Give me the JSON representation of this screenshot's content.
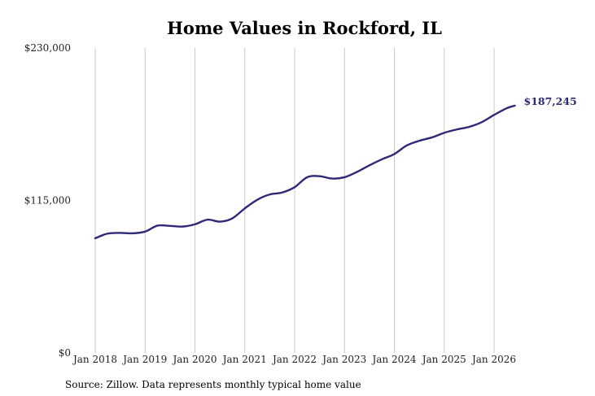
{
  "chart_data": {
    "type": "line",
    "title": "Home Values in Rockford, IL",
    "xlabel": "",
    "ylabel": "",
    "source": "Source: Zillow. Data represents monthly typical home value",
    "end_label": "$187,245",
    "line_color": "#2e2a78",
    "grid": {
      "vertical": true,
      "horizontal": false,
      "color": "#c8c8c8"
    },
    "ylim": [
      0,
      230000
    ],
    "y_ticks": [
      {
        "value": 230000,
        "label": "$230,000"
      },
      {
        "value": 115000,
        "label": "$115,000"
      },
      {
        "value": 0,
        "label": "$0"
      }
    ],
    "x_ticks": [
      {
        "value": "2018-01",
        "label": "Jan 2018"
      },
      {
        "value": "2019-01",
        "label": "Jan 2019"
      },
      {
        "value": "2020-01",
        "label": "Jan 2020"
      },
      {
        "value": "2021-01",
        "label": "Jan 2021"
      },
      {
        "value": "2022-01",
        "label": "Jan 2022"
      },
      {
        "value": "2023-01",
        "label": "Jan 2023"
      },
      {
        "value": "2024-01",
        "label": "Jan 2024"
      },
      {
        "value": "2025-01",
        "label": "Jan 2025"
      },
      {
        "value": "2026-01",
        "label": "Jan 2026"
      }
    ],
    "series": [
      {
        "points": [
          [
            "2018-01",
            86500
          ],
          [
            "2018-04",
            90000
          ],
          [
            "2018-07",
            90500
          ],
          [
            "2018-10",
            90200
          ],
          [
            "2019-01",
            91500
          ],
          [
            "2019-04",
            96000
          ],
          [
            "2019-07",
            95800
          ],
          [
            "2019-10",
            95300
          ],
          [
            "2020-01",
            97000
          ],
          [
            "2020-04",
            100500
          ],
          [
            "2020-07",
            99000
          ],
          [
            "2020-10",
            101500
          ],
          [
            "2021-01",
            109000
          ],
          [
            "2021-04",
            115500
          ],
          [
            "2021-07",
            119500
          ],
          [
            "2021-10",
            121000
          ],
          [
            "2022-01",
            125000
          ],
          [
            "2022-04",
            132500
          ],
          [
            "2022-07",
            133300
          ],
          [
            "2022-10",
            131500
          ],
          [
            "2023-01",
            132500
          ],
          [
            "2023-04",
            136500
          ],
          [
            "2023-07",
            141500
          ],
          [
            "2023-10",
            146000
          ],
          [
            "2024-01",
            150000
          ],
          [
            "2024-04",
            156500
          ],
          [
            "2024-07",
            160000
          ],
          [
            "2024-10",
            162500
          ],
          [
            "2025-01",
            166000
          ],
          [
            "2025-04",
            168500
          ],
          [
            "2025-07",
            170500
          ],
          [
            "2025-10",
            174000
          ],
          [
            "2026-01",
            179500
          ],
          [
            "2026-04",
            184500
          ],
          [
            "2026-06",
            186500
          ]
        ]
      }
    ]
  }
}
